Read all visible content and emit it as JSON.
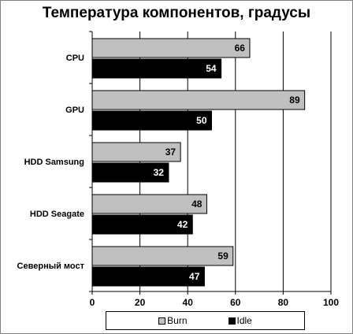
{
  "chart_data": {
    "type": "bar",
    "orientation": "horizontal",
    "title": "Температура компонентов, градусы",
    "categories": [
      "CPU",
      "GPU",
      "HDD Samsung",
      "HDD Seagate",
      "Северный мост"
    ],
    "series": [
      {
        "name": "Burn",
        "values": [
          66,
          89,
          37,
          48,
          59
        ],
        "color": "#c0c0c0",
        "label_color": "#000000"
      },
      {
        "name": "Idle",
        "values": [
          54,
          50,
          32,
          42,
          47
        ],
        "color": "#000000",
        "label_color": "#ffffff"
      }
    ],
    "xlim": [
      0,
      100
    ],
    "xticks": [
      "0",
      "20",
      "40",
      "60",
      "80",
      "100"
    ],
    "grid": true,
    "legend_position": "bottom"
  }
}
